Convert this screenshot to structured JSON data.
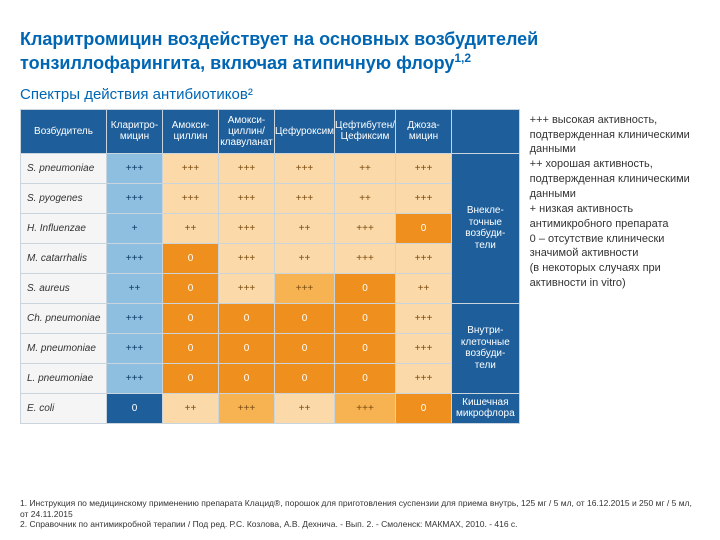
{
  "title": "Кларитромицин воздействует на основных возбудителей тонзиллофарингита, включая атипичную флору",
  "title_sup": "1,2",
  "subtitle": "Спектры действия антибиотиков²",
  "table": {
    "header_pathogen": "Возбудитель",
    "drugs": [
      "Кларитро-\nмицин",
      "Амокси-\nциллин",
      "Амокси-\nциллин/\nклавуланат",
      "Цефуроксим",
      "Цефтибутен/\nЦефиксим",
      "Джоза-\nмицин"
    ],
    "side_groups": [
      {
        "label": "Внекле-\nточные\nвозбуди-\nтели",
        "span": 5
      },
      {
        "label": "Внутри-\nклеточные\nвозбуди-\nтели",
        "span": 3
      },
      {
        "label": "Кишечная\nмикрофлора",
        "span": 1
      }
    ],
    "rows": [
      {
        "p": "S. pneumoniae",
        "c": [
          "+++",
          "+++",
          "+++",
          "+++",
          "++",
          "+++"
        ],
        "lvl": [
          "lb",
          "or1",
          "or1",
          "or1",
          "or1",
          "or1"
        ]
      },
      {
        "p": "S. pyogenes",
        "c": [
          "+++",
          "+++",
          "+++",
          "+++",
          "++",
          "+++"
        ],
        "lvl": [
          "lb",
          "or1",
          "or1",
          "or1",
          "or1",
          "or1"
        ]
      },
      {
        "p": "H. Influenzae",
        "c": [
          "+",
          "++",
          "+++",
          "++",
          "+++",
          "0"
        ],
        "lvl": [
          "lb",
          "or1",
          "or1",
          "or1",
          "or1",
          "or3"
        ]
      },
      {
        "p": "M. catarrhalis",
        "c": [
          "+++",
          "0",
          "+++",
          "++",
          "+++",
          "+++"
        ],
        "lvl": [
          "lb",
          "or3",
          "or1",
          "or1",
          "or1",
          "or1"
        ]
      },
      {
        "p": "S. aureus",
        "c": [
          "++",
          "0",
          "+++",
          "+++",
          "0",
          "++"
        ],
        "lvl": [
          "lb",
          "or3",
          "or1",
          "or2",
          "or3",
          "or1"
        ]
      },
      {
        "p": "Ch. pneumoniae",
        "c": [
          "+++",
          "0",
          "0",
          "0",
          "0",
          "+++"
        ],
        "lvl": [
          "lb",
          "or3",
          "or3",
          "or3",
          "or3",
          "or1"
        ]
      },
      {
        "p": "M. pneumoniae",
        "c": [
          "+++",
          "0",
          "0",
          "0",
          "0",
          "+++"
        ],
        "lvl": [
          "lb",
          "or3",
          "or3",
          "or3",
          "or3",
          "or1"
        ]
      },
      {
        "p": "L. pneumoniae",
        "c": [
          "+++",
          "0",
          "0",
          "0",
          "0",
          "+++"
        ],
        "lvl": [
          "lb",
          "or3",
          "or3",
          "or3",
          "or3",
          "or1"
        ]
      },
      {
        "p": "E. coli",
        "c": [
          "0",
          "++",
          "+++",
          "++",
          "+++",
          "0"
        ],
        "lvl": [
          "blue",
          "or1",
          "or2",
          "or1",
          "or2",
          "or3"
        ]
      }
    ]
  },
  "legend": {
    "l1": "+++ высокая активность, подтвержденная клиническими данными",
    "l2": "++ хорошая активность, подтвержденная клиническими данными",
    "l3": "+ низкая активность антимикробного препарата",
    "l4": "0 – отсутствие клинически значимой активности",
    "l5": "(в некоторых случаях при активности in vitro)"
  },
  "refs": {
    "r1": "1. Инструкция по медицинскому применению препарата Клацид®, порошок для приготовления суспензии для приема внутрь, 125 мг / 5 мл, от 16.12.2015 и 250 мг / 5 мл, от 24.11.2015",
    "r2": "2. Справочник по антимикробной терапии / Под ред. Р.С. Козлова, А.В. Дехнича. - Вып. 2. - Смоленск: МАКМАХ, 2010. - 416 с."
  }
}
